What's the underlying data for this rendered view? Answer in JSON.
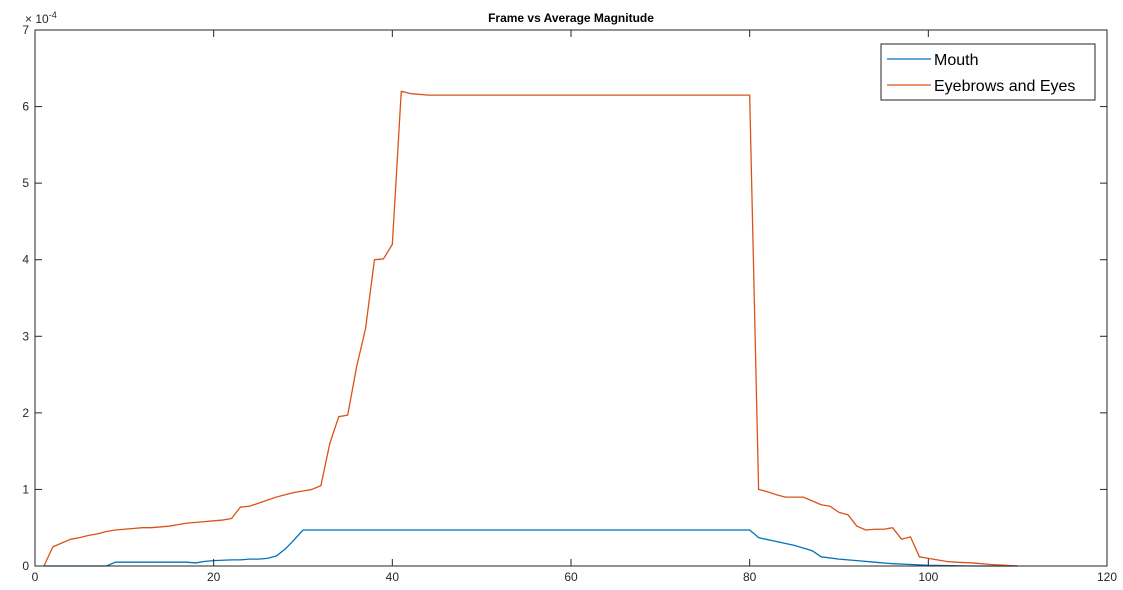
{
  "chart_data": {
    "type": "line",
    "title": "Frame vs Average Magnitude",
    "xlabel": "",
    "ylabel": "",
    "xlim": [
      0,
      120
    ],
    "ylim": [
      0,
      7
    ],
    "y_exponent_label": "× 10^-4",
    "y_exponent_base": "× 10",
    "y_exponent_power": "-4",
    "x_ticks": [
      0,
      20,
      40,
      60,
      80,
      100,
      120
    ],
    "y_ticks": [
      0,
      1,
      2,
      3,
      4,
      5,
      6,
      7
    ],
    "grid": false,
    "legend_position": "top-right",
    "series": [
      {
        "name": "Mouth",
        "color": "#0072BD",
        "x": [
          1,
          8,
          9,
          10,
          15,
          17,
          18,
          19,
          20,
          22,
          23,
          24,
          25,
          26,
          27,
          28,
          29,
          30,
          40,
          50,
          60,
          70,
          80,
          81,
          83,
          85,
          87,
          88,
          90,
          92,
          94,
          96,
          98,
          100,
          105,
          107,
          110
        ],
        "y": [
          0.0,
          0.0,
          0.05,
          0.05,
          0.05,
          0.05,
          0.04,
          0.06,
          0.07,
          0.08,
          0.08,
          0.09,
          0.09,
          0.1,
          0.13,
          0.22,
          0.34,
          0.47,
          0.47,
          0.47,
          0.47,
          0.47,
          0.47,
          0.37,
          0.32,
          0.27,
          0.2,
          0.12,
          0.09,
          0.07,
          0.05,
          0.03,
          0.02,
          0.01,
          0.0,
          0.0,
          0.0
        ]
      },
      {
        "name": "Eyebrows and Eyes",
        "color": "#D95319",
        "x": [
          1,
          2,
          3,
          4,
          5,
          6,
          7,
          8,
          9,
          10,
          11,
          12,
          13,
          14,
          15,
          16,
          17,
          18,
          19,
          20,
          21,
          22,
          23,
          24,
          25,
          26,
          27,
          28,
          29,
          30,
          31,
          32,
          33,
          34,
          35,
          36,
          37,
          38,
          39,
          40,
          41,
          42,
          44,
          50,
          60,
          70,
          80,
          81,
          82,
          83,
          84,
          85,
          86,
          87,
          88,
          89,
          90,
          91,
          92,
          93,
          94,
          95,
          96,
          97,
          98,
          99,
          100,
          101,
          102,
          103,
          105,
          107,
          110
        ],
        "y": [
          0.0,
          0.25,
          0.3,
          0.35,
          0.37,
          0.4,
          0.42,
          0.45,
          0.47,
          0.48,
          0.49,
          0.5,
          0.5,
          0.51,
          0.52,
          0.54,
          0.56,
          0.57,
          0.58,
          0.59,
          0.6,
          0.62,
          0.77,
          0.78,
          0.82,
          0.86,
          0.9,
          0.93,
          0.96,
          0.98,
          1.0,
          1.05,
          1.6,
          1.95,
          1.97,
          2.6,
          3.1,
          4.0,
          4.01,
          4.2,
          6.2,
          6.17,
          6.15,
          6.15,
          6.15,
          6.15,
          6.15,
          1.0,
          0.97,
          0.93,
          0.9,
          0.9,
          0.9,
          0.85,
          0.8,
          0.78,
          0.7,
          0.67,
          0.52,
          0.47,
          0.48,
          0.48,
          0.5,
          0.35,
          0.38,
          0.12,
          0.1,
          0.08,
          0.06,
          0.05,
          0.04,
          0.02,
          0.0
        ]
      }
    ]
  }
}
